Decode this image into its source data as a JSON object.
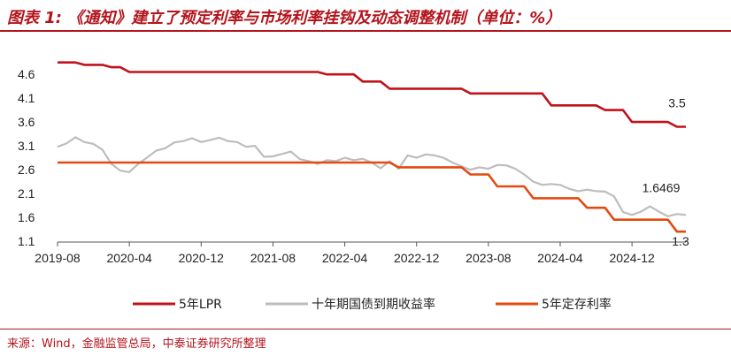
{
  "header": {
    "title": "图表 1: 《通知》建立了预定利率与市场利率挂钩及动态调整机制（单位：%）"
  },
  "footer": {
    "source": "来源：Wind，金融监管总局，中泰证券研究所整理"
  },
  "chart_data": {
    "type": "line",
    "title": "",
    "xlabel": "",
    "ylabel": "",
    "ylim": [
      1.1,
      4.9
    ],
    "y_ticks": [
      "4.6",
      "4.1",
      "3.6",
      "3.1",
      "2.6",
      "2.1",
      "1.6",
      "1.1"
    ],
    "y_tick_values": [
      4.6,
      4.1,
      3.6,
      3.1,
      2.6,
      2.1,
      1.6,
      1.1
    ],
    "x_ticks": [
      "2019-08",
      "2020-04",
      "2020-12",
      "2021-08",
      "2022-04",
      "2022-12",
      "2023-08",
      "2024-04",
      "2024-12"
    ],
    "x_tick_index": [
      0,
      8,
      16,
      24,
      32,
      40,
      48,
      56,
      64
    ],
    "x_start": "2019-08",
    "n_months": 70,
    "grid": false,
    "legend_position": "bottom",
    "colors": {
      "lpr": "#c0121b",
      "bond": "#bdbdbd",
      "deposit": "#e34a12"
    },
    "series": [
      {
        "key": "lpr",
        "name": "5年LPR",
        "values": [
          4.85,
          4.85,
          4.85,
          4.8,
          4.8,
          4.8,
          4.75,
          4.75,
          4.65,
          4.65,
          4.65,
          4.65,
          4.65,
          4.65,
          4.65,
          4.65,
          4.65,
          4.65,
          4.65,
          4.65,
          4.65,
          4.65,
          4.65,
          4.65,
          4.65,
          4.65,
          4.65,
          4.65,
          4.65,
          4.65,
          4.6,
          4.6,
          4.6,
          4.6,
          4.45,
          4.45,
          4.45,
          4.3,
          4.3,
          4.3,
          4.3,
          4.3,
          4.3,
          4.3,
          4.3,
          4.3,
          4.2,
          4.2,
          4.2,
          4.2,
          4.2,
          4.2,
          4.2,
          4.2,
          4.2,
          3.95,
          3.95,
          3.95,
          3.95,
          3.95,
          3.95,
          3.85,
          3.85,
          3.85,
          3.6,
          3.6,
          3.6,
          3.6,
          3.6,
          3.5,
          3.5
        ]
      },
      {
        "key": "bond",
        "name": "十年期国债到期收益率",
        "values": [
          3.08,
          3.15,
          3.28,
          3.18,
          3.14,
          3.02,
          2.72,
          2.58,
          2.55,
          2.72,
          2.86,
          3.0,
          3.05,
          3.17,
          3.2,
          3.26,
          3.18,
          3.22,
          3.27,
          3.2,
          3.18,
          3.08,
          3.1,
          2.87,
          2.88,
          2.93,
          2.98,
          2.82,
          2.78,
          2.72,
          2.8,
          2.78,
          2.85,
          2.8,
          2.83,
          2.75,
          2.63,
          2.78,
          2.62,
          2.9,
          2.85,
          2.92,
          2.9,
          2.85,
          2.75,
          2.67,
          2.6,
          2.65,
          2.62,
          2.7,
          2.69,
          2.62,
          2.5,
          2.35,
          2.28,
          2.3,
          2.28,
          2.2,
          2.15,
          2.18,
          2.15,
          2.14,
          2.04,
          1.71,
          1.65,
          1.72,
          1.83,
          1.72,
          1.62,
          1.67,
          1.65
        ]
      },
      {
        "key": "deposit",
        "name": "5年定存利率",
        "values": [
          2.75,
          2.75,
          2.75,
          2.75,
          2.75,
          2.75,
          2.75,
          2.75,
          2.75,
          2.75,
          2.75,
          2.75,
          2.75,
          2.75,
          2.75,
          2.75,
          2.75,
          2.75,
          2.75,
          2.75,
          2.75,
          2.75,
          2.75,
          2.75,
          2.75,
          2.75,
          2.75,
          2.75,
          2.75,
          2.75,
          2.75,
          2.75,
          2.75,
          2.75,
          2.75,
          2.75,
          2.75,
          2.75,
          2.65,
          2.65,
          2.65,
          2.65,
          2.65,
          2.65,
          2.65,
          2.65,
          2.5,
          2.5,
          2.5,
          2.25,
          2.25,
          2.25,
          2.25,
          2.0,
          2.0,
          2.0,
          2.0,
          2.0,
          2.0,
          1.8,
          1.8,
          1.8,
          1.55,
          1.55,
          1.55,
          1.55,
          1.55,
          1.55,
          1.55,
          1.3,
          1.3
        ]
      }
    ],
    "end_labels": {
      "lpr": "3.5",
      "bond": "1.6469",
      "deposit": "1.3"
    }
  }
}
